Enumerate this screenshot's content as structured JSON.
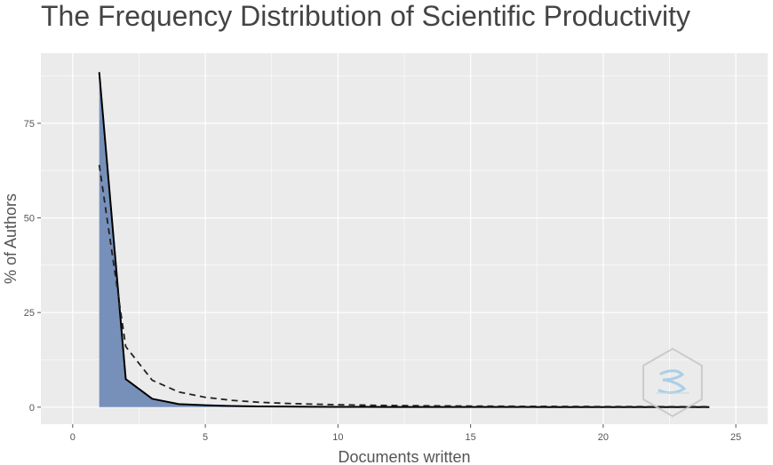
{
  "chart_data": {
    "type": "area",
    "title": "The Frequency Distribution of Scientific Productivity",
    "xlabel": "Documents written",
    "ylabel": "% of Authors",
    "xlim": [
      -1.2,
      26.2
    ],
    "ylim": [
      -4.5,
      93.5
    ],
    "x_ticks": [
      0,
      5,
      10,
      15,
      20,
      25
    ],
    "y_ticks": [
      0,
      25,
      50,
      75
    ],
    "grid": true,
    "legend": "none",
    "series": [
      {
        "style": "filled-area-solid-line",
        "fill_color": "#7790BA",
        "line_color": "#000000",
        "x": [
          1,
          2,
          3,
          4,
          5,
          6,
          7,
          8,
          9,
          10,
          11,
          12,
          13,
          14,
          15,
          16,
          17,
          18,
          19,
          20,
          21,
          22,
          23,
          24
        ],
        "y": [
          88.5,
          7.4,
          2.2,
          0.8,
          0.5,
          0.3,
          0.2,
          0.15,
          0.1,
          0.08,
          0.06,
          0.05,
          0.04,
          0.04,
          0.03,
          0.03,
          0.03,
          0.02,
          0.02,
          0.02,
          0.02,
          0.02,
          0.02,
          0.02
        ]
      },
      {
        "style": "dashed-line",
        "line_color": "#222222",
        "x": [
          1,
          2,
          3,
          4,
          5,
          6,
          7,
          8,
          9,
          10,
          11,
          12,
          13,
          14,
          15,
          16,
          17,
          18,
          19,
          20,
          21,
          22,
          23,
          24
        ],
        "y": [
          64,
          16,
          7.1,
          4.0,
          2.6,
          1.8,
          1.3,
          1.0,
          0.8,
          0.64,
          0.53,
          0.44,
          0.38,
          0.33,
          0.28,
          0.25,
          0.22,
          0.2,
          0.18,
          0.16,
          0.15,
          0.13,
          0.12,
          0.11
        ]
      }
    ]
  },
  "colors": {
    "panel_background": "#EBEBEB",
    "grid": "#FFFFFF",
    "text": "#444444"
  },
  "watermark": {
    "icon": "bibliometrix-hexagon-logo"
  }
}
